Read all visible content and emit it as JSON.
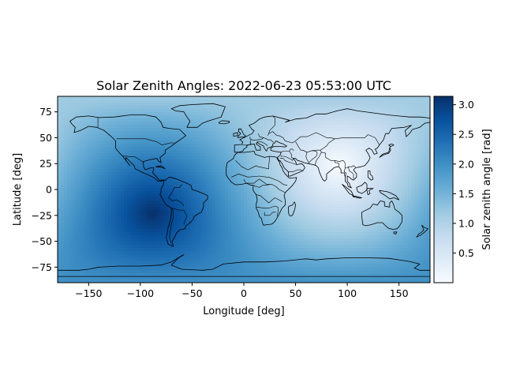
{
  "chart_data": {
    "type": "heatmap",
    "title": "Solar Zenith Angles: 2022-06-23 05:53:00 UTC",
    "xlabel": "Longitude [deg]",
    "ylabel": "Latitude [deg]",
    "xlim": [
      -180,
      180
    ],
    "ylim": [
      -90,
      90
    ],
    "x_ticks": [
      -150,
      -100,
      -50,
      0,
      50,
      100,
      150
    ],
    "y_ticks": [
      -75,
      -50,
      -25,
      0,
      25,
      50,
      75
    ],
    "x_tick_labels": [
      "−150",
      "−100",
      "−50",
      "0",
      "50",
      "100",
      "150"
    ],
    "y_tick_labels": [
      "−75",
      "−50",
      "−25",
      "0",
      "25",
      "50",
      "75"
    ],
    "subsolar_point": {
      "lon": 92,
      "lat": 23.4
    },
    "antisolar_point": {
      "lon": -88,
      "lat": -23.4
    },
    "value_range": [
      0,
      3.14159
    ],
    "colormap": "Blues",
    "colormap_stops": [
      "#f7fbff",
      "#deebf7",
      "#c6dbef",
      "#9ecae1",
      "#6baed6",
      "#4292c6",
      "#2171b5",
      "#08519c",
      "#08306b"
    ],
    "overlay": "country borders and coastlines",
    "colorbar": {
      "label": "Solar zenith angle [rad]",
      "ticks": [
        0.5,
        1.0,
        1.5,
        2.0,
        2.5,
        3.0
      ],
      "tick_labels": [
        "0.5",
        "1.0",
        "1.5",
        "2.0",
        "2.5",
        "3.0"
      ],
      "range": [
        0,
        3.14159
      ]
    }
  }
}
